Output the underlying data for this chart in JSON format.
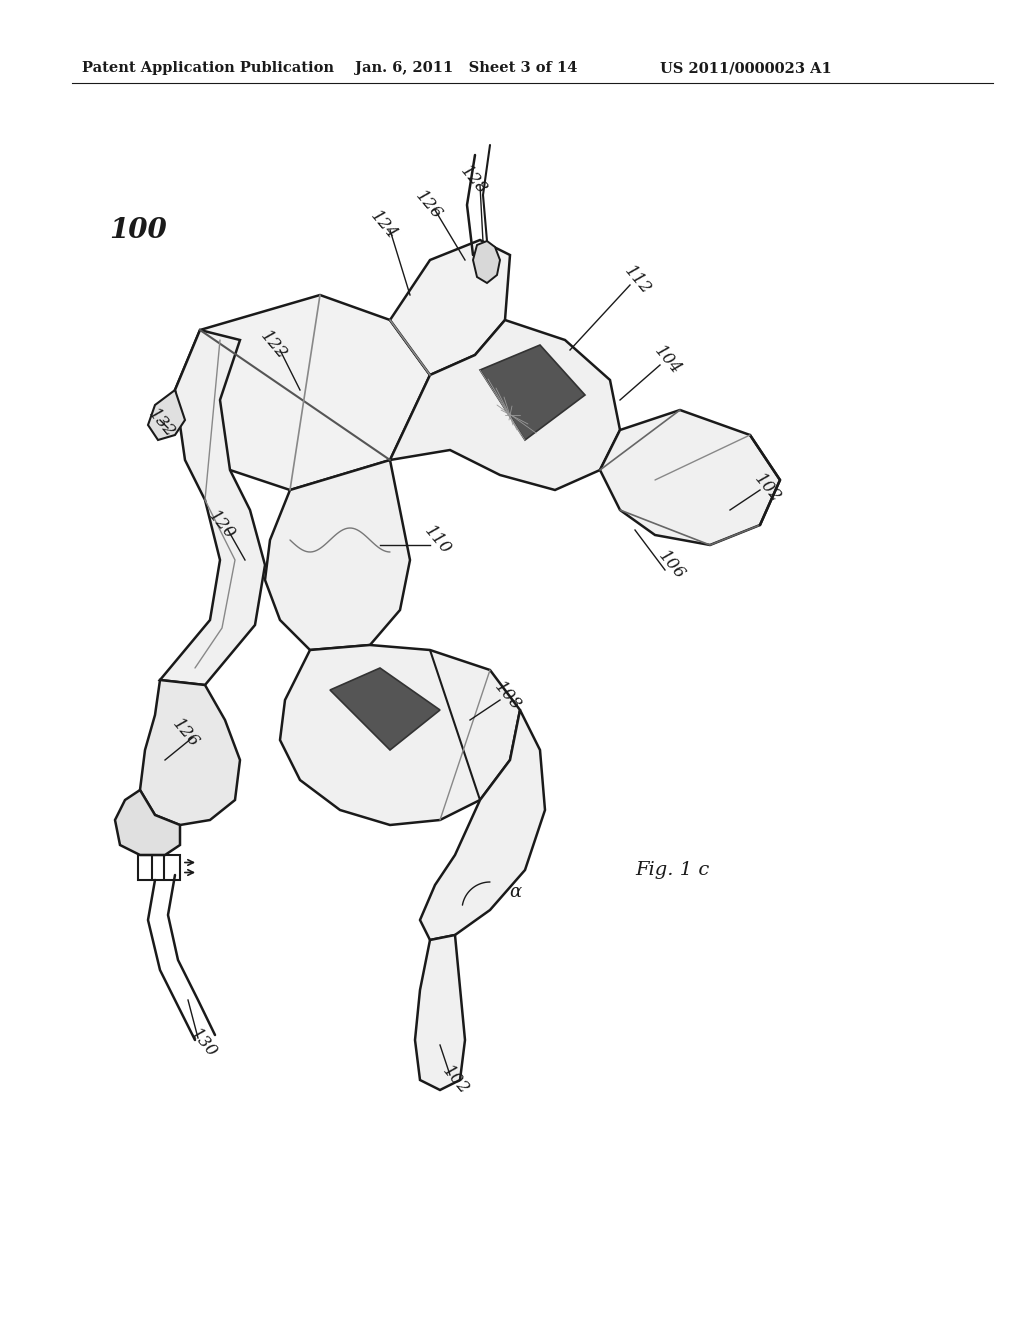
{
  "header_left": "Patent Application Publication",
  "header_mid": "Jan. 6, 2011   Sheet 3 of 14",
  "header_right": "US 2011/0000023 A1",
  "figure_label": "Fig. 1 c",
  "bg_color": "#ffffff",
  "line_color": "#1a1a1a"
}
